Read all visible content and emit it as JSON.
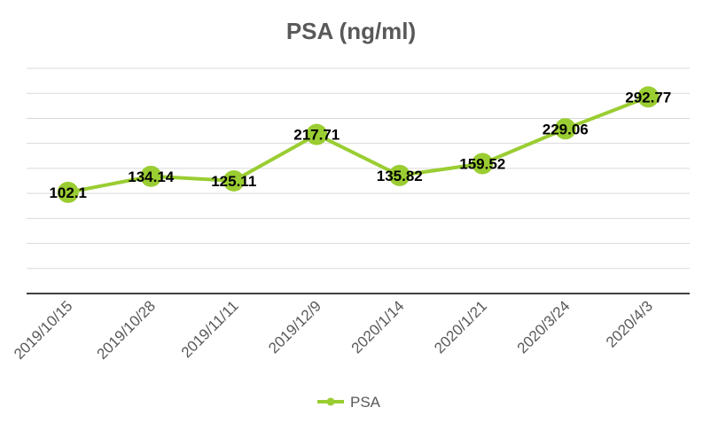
{
  "chart_data": {
    "type": "line",
    "title": "PSA  (ng/ml)",
    "xlabel": "",
    "ylabel": "",
    "categories": [
      "2019/10/15",
      "2019/10/28",
      "2019/11/11",
      "2019/12/9",
      "2020/1/14",
      "2020/1/21",
      "2020/3/24",
      "2020/4/3"
    ],
    "series": [
      {
        "name": "PSA",
        "values": [
          102.1,
          134.14,
          125.11,
          217.71,
          135.82,
          159.52,
          229.06,
          292.77
        ]
      }
    ],
    "data_labels": [
      "102.1",
      "134.14",
      "125.11",
      "217.71",
      "135.82",
      "159.52",
      "229.06",
      "292.77"
    ],
    "ylim": [
      -100,
      350
    ],
    "grid": true,
    "legend": "bottom",
    "colors": {
      "series": "#9acd32",
      "axis": "#404040",
      "grid": "#d9d9d9",
      "title": "#595959"
    }
  }
}
